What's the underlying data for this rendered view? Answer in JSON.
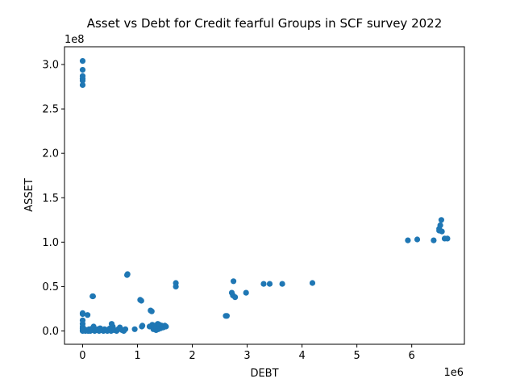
{
  "chart_data": {
    "type": "scatter",
    "title": "Asset vs Debt for Credit fearful Groups in SCF survey 2022",
    "xlabel": "DEBT",
    "ylabel": "ASSET",
    "x_offset_label": "1e6",
    "y_offset_label": "1e8",
    "xlim": [
      -0.33,
      6.96
    ],
    "ylim": [
      -0.15,
      3.2
    ],
    "xticks": [
      0,
      1,
      2,
      3,
      4,
      5,
      6
    ],
    "xtick_labels": [
      "0",
      "1",
      "2",
      "3",
      "4",
      "5",
      "6"
    ],
    "yticks": [
      0.0,
      0.5,
      1.0,
      1.5,
      2.0,
      2.5,
      3.0
    ],
    "ytick_labels": [
      "0.0",
      "0.5",
      "1.0",
      "1.5",
      "2.0",
      "2.5",
      "3.0"
    ],
    "grid": false,
    "legend": "none",
    "marker_color": "#1f77b4",
    "points": [
      [
        0.0,
        3.04
      ],
      [
        0.0,
        2.94
      ],
      [
        0.0,
        2.87
      ],
      [
        0.0,
        2.84
      ],
      [
        0.0,
        2.82
      ],
      [
        0.0,
        2.77
      ],
      [
        0.0,
        0.2
      ],
      [
        0.0,
        0.19
      ],
      [
        0.09,
        0.18
      ],
      [
        0.0,
        0.12
      ],
      [
        0.0,
        0.08
      ],
      [
        0.0,
        0.05
      ],
      [
        0.0,
        0.03
      ],
      [
        0.0,
        0.01
      ],
      [
        0.0,
        0.0
      ],
      [
        0.03,
        0.02
      ],
      [
        0.05,
        0.0
      ],
      [
        0.08,
        0.01
      ],
      [
        0.1,
        0.0
      ],
      [
        0.12,
        0.02
      ],
      [
        0.14,
        0.0
      ],
      [
        0.16,
        0.01
      ],
      [
        0.18,
        0.03
      ],
      [
        0.2,
        0.05
      ],
      [
        0.18,
        0.39
      ],
      [
        0.19,
        0.39
      ],
      [
        0.22,
        0.0
      ],
      [
        0.25,
        0.01
      ],
      [
        0.28,
        0.02
      ],
      [
        0.3,
        0.0
      ],
      [
        0.32,
        0.03
      ],
      [
        0.35,
        0.01
      ],
      [
        0.38,
        0.0
      ],
      [
        0.4,
        0.02
      ],
      [
        0.42,
        0.01
      ],
      [
        0.45,
        0.0
      ],
      [
        0.48,
        0.02
      ],
      [
        0.5,
        0.03
      ],
      [
        0.52,
        0.0
      ],
      [
        0.53,
        0.08
      ],
      [
        0.55,
        0.05
      ],
      [
        0.58,
        0.01
      ],
      [
        0.62,
        0.0
      ],
      [
        0.65,
        0.02
      ],
      [
        0.68,
        0.04
      ],
      [
        0.72,
        0.01
      ],
      [
        0.75,
        0.0
      ],
      [
        0.78,
        0.02
      ],
      [
        0.81,
        0.63
      ],
      [
        0.82,
        0.64
      ],
      [
        0.95,
        0.02
      ],
      [
        1.05,
        0.35
      ],
      [
        1.07,
        0.34
      ],
      [
        1.08,
        0.05
      ],
      [
        1.09,
        0.06
      ],
      [
        1.22,
        0.05
      ],
      [
        1.24,
        0.23
      ],
      [
        1.26,
        0.22
      ],
      [
        1.27,
        0.07
      ],
      [
        1.29,
        0.02
      ],
      [
        1.3,
        0.03
      ],
      [
        1.32,
        0.06
      ],
      [
        1.34,
        0.01
      ],
      [
        1.35,
        0.04
      ],
      [
        1.37,
        0.08
      ],
      [
        1.38,
        0.02
      ],
      [
        1.39,
        0.05
      ],
      [
        1.4,
        0.07
      ],
      [
        1.42,
        0.03
      ],
      [
        1.44,
        0.06
      ],
      [
        1.45,
        0.05
      ],
      [
        1.47,
        0.04
      ],
      [
        1.5,
        0.06
      ],
      [
        1.52,
        0.05
      ],
      [
        1.7,
        0.54
      ],
      [
        1.7,
        0.5
      ],
      [
        2.61,
        0.17
      ],
      [
        2.63,
        0.17
      ],
      [
        2.72,
        0.43
      ],
      [
        2.74,
        0.4
      ],
      [
        2.75,
        0.56
      ],
      [
        2.78,
        0.38
      ],
      [
        2.98,
        0.43
      ],
      [
        3.3,
        0.53
      ],
      [
        3.41,
        0.53
      ],
      [
        3.64,
        0.53
      ],
      [
        4.19,
        0.54
      ],
      [
        5.93,
        1.02
      ],
      [
        6.1,
        1.03
      ],
      [
        6.4,
        1.02
      ],
      [
        6.5,
        1.15
      ],
      [
        6.5,
        1.13
      ],
      [
        6.52,
        1.19
      ],
      [
        6.54,
        1.25
      ],
      [
        6.55,
        1.12
      ],
      [
        6.6,
        1.04
      ],
      [
        6.65,
        1.04
      ]
    ]
  }
}
